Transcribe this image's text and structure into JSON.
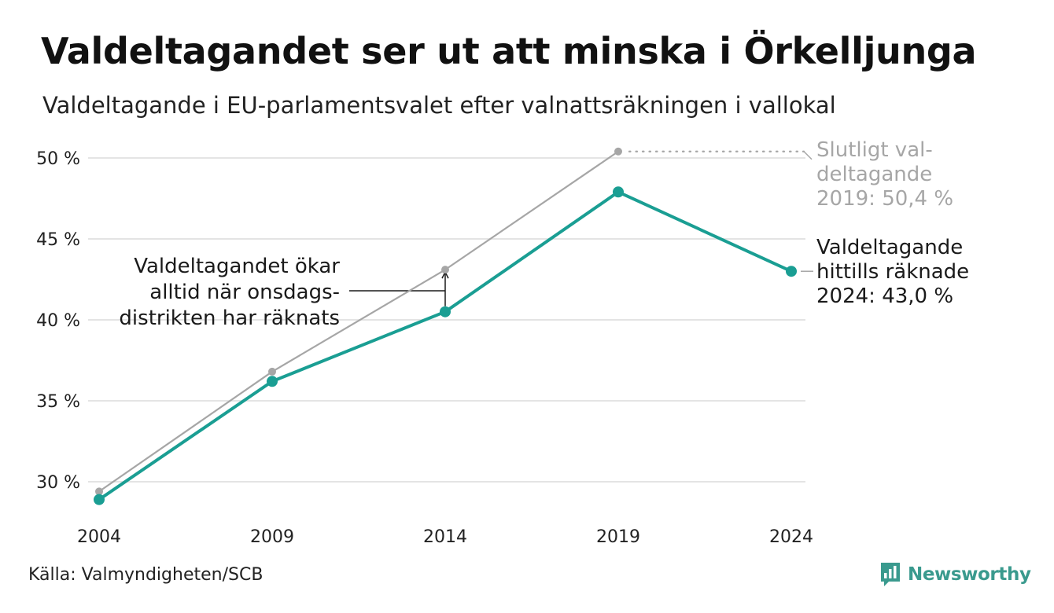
{
  "title": "Valdeltagandet ser ut att minska i Örkelljunga",
  "subtitle": "Valdeltagande i EU-parlamentsvalet efter valnattsräkningen i vallokal",
  "source": "Källa: Valmyndigheten/SCB",
  "brand": {
    "name": "Newsworthy",
    "icon": "newsworthy-logo-icon",
    "color": "#3a9a8e"
  },
  "chart_data": {
    "type": "line",
    "x": [
      2004,
      2009,
      2014,
      2019,
      2024
    ],
    "xlim": [
      2004,
      2024
    ],
    "ylim": [
      29,
      51
    ],
    "y_ticks": [
      30,
      35,
      40,
      45,
      50
    ],
    "y_tick_labels": [
      "30 %",
      "35 %",
      "40 %",
      "45 %",
      "50 %"
    ],
    "x_tick_labels": [
      "2004",
      "2009",
      "2014",
      "2019",
      "2024"
    ],
    "grid": "horizontal",
    "series": [
      {
        "color": "#a6a6a6",
        "values": [
          29.4,
          36.8,
          43.1,
          50.4,
          null
        ]
      },
      {
        "color": "#1a9e93",
        "values": [
          28.9,
          36.2,
          40.5,
          47.9,
          43.0
        ]
      }
    ],
    "annotations": {
      "final_turnout": {
        "lines": [
          "Slutligt val-",
          "deltagande",
          "2019: 50,4 %"
        ],
        "color": "#a6a6a6",
        "x": 2019,
        "y": 50.4
      },
      "counted": {
        "lines": [
          "Valdeltagande",
          "hittills räknade",
          "2024: 43,0 %"
        ],
        "color": "#1a1a1a",
        "x": 2024,
        "y": 43.0
      },
      "note": {
        "lines": [
          "Valdeltagandet ökar",
          "alltid när onsdags-",
          "distrikten har räknats"
        ],
        "color": "#1a1a1a",
        "x": 2014,
        "y_from": 40.5,
        "y_to": 43.1
      }
    }
  }
}
